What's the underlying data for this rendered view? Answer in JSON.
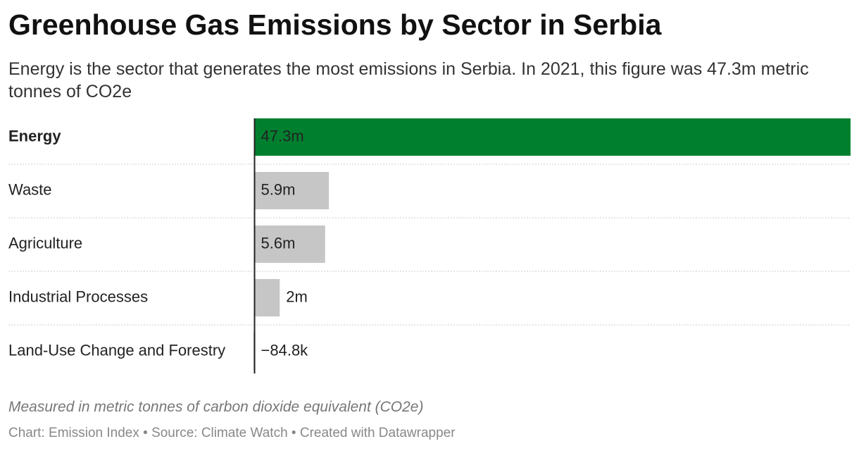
{
  "chart_data": {
    "type": "bar",
    "orientation": "horizontal",
    "title": "Greenhouse Gas Emissions by Sector in Serbia",
    "subtitle": "Energy is the sector that generates the most emissions in Serbia. In 2021, this figure was 47.3m metric tonnes of CO2e",
    "categories": [
      "Energy",
      "Waste",
      "Agriculture",
      "Industrial Processes",
      "Land-Use Change and Forestry"
    ],
    "values": [
      47300000,
      5900000,
      5600000,
      2000000,
      -84800
    ],
    "value_labels": [
      "47.3m",
      "5.9m",
      "5.6m",
      "2m",
      "−84.8k"
    ],
    "colors": [
      "#00802f",
      "#c6c6c6",
      "#c6c6c6",
      "#c6c6c6",
      "#c6c6c6"
    ],
    "base_color": "#c6c6c6",
    "note": "Measured in metric tonnes of carbon dioxide equivalent (CO2e)",
    "footer": "Chart: Emission Index • Source: Climate Watch • Created with Datawrapper"
  }
}
